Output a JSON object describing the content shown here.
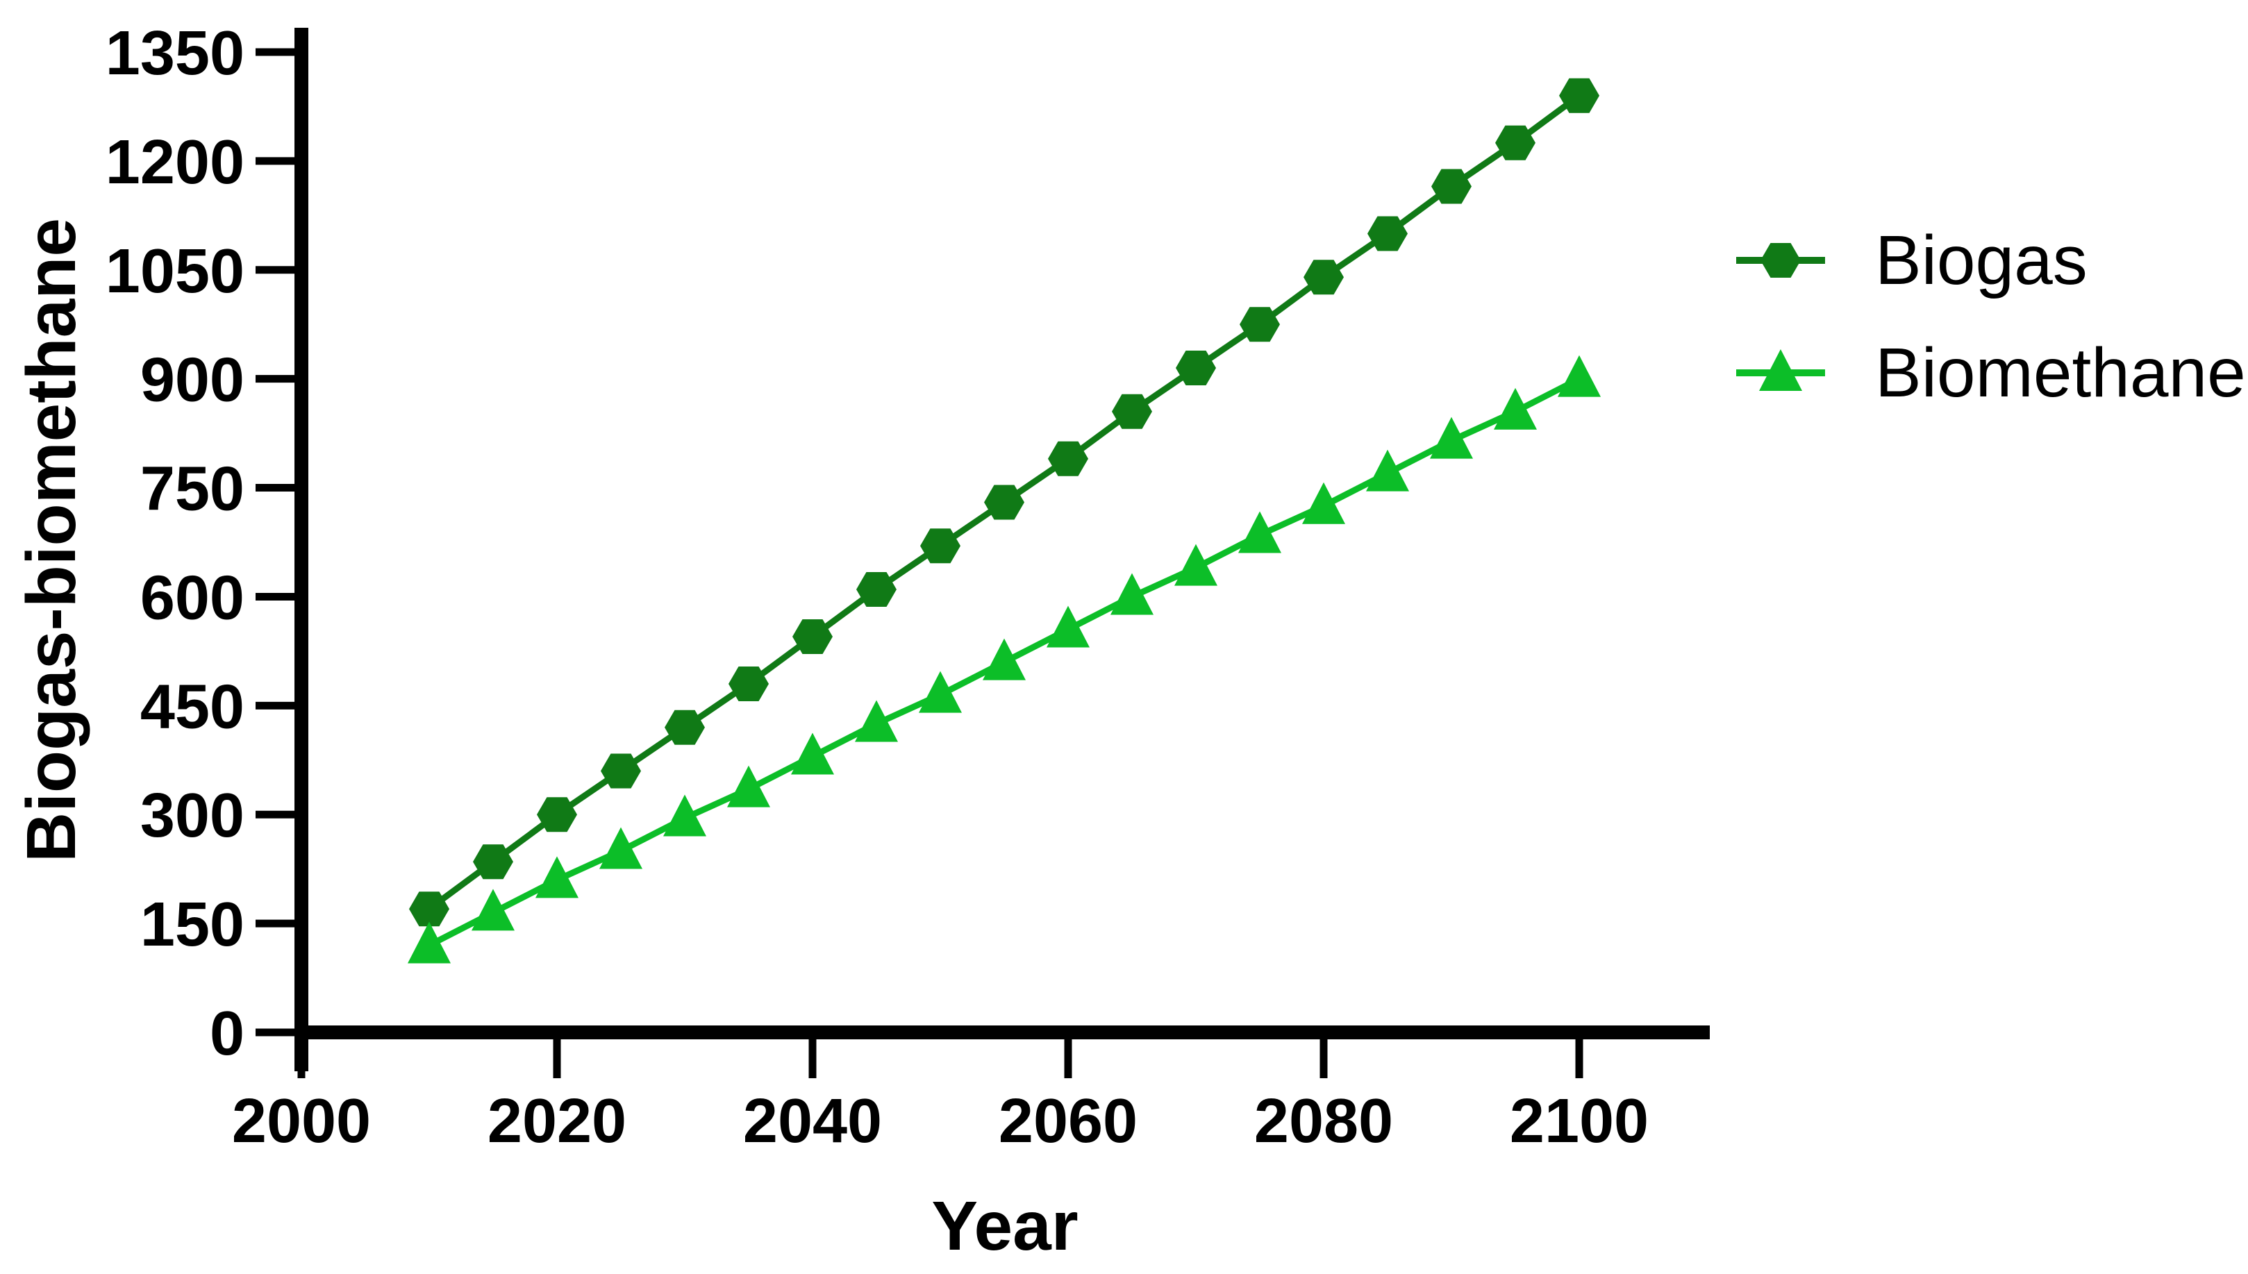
{
  "chart_data": {
    "type": "line",
    "title": "",
    "xlabel": "Year",
    "ylabel": "Biogas-biomethane",
    "x": [
      2010,
      2015,
      2020,
      2025,
      2030,
      2035,
      2040,
      2045,
      2050,
      2055,
      2060,
      2065,
      2070,
      2075,
      2080,
      2085,
      2090,
      2095,
      2100
    ],
    "series": [
      {
        "name": "Biogas",
        "marker": "hexagon",
        "color": "#107a16",
        "values": [
          170,
          235,
          300,
          360,
          420,
          480,
          545,
          610,
          670,
          730,
          790,
          855,
          915,
          975,
          1040,
          1100,
          1165,
          1225,
          1290
        ]
      },
      {
        "name": "Biomethane",
        "marker": "triangle",
        "color": "#0cbe28",
        "values": [
          120,
          165,
          210,
          250,
          295,
          335,
          380,
          425,
          465,
          510,
          555,
          600,
          640,
          685,
          725,
          770,
          815,
          855,
          900
        ]
      }
    ],
    "x_ticks": [
      2000,
      2020,
      2040,
      2060,
      2080,
      2100
    ],
    "y_ticks": [
      0,
      150,
      300,
      450,
      600,
      750,
      900,
      1050,
      1200,
      1350
    ],
    "xlim": [
      2000,
      2110
    ],
    "ylim": [
      0,
      1350
    ],
    "grid": false,
    "legend_position": "right",
    "axis_color": "#000000",
    "background_color": "#ffffff"
  }
}
